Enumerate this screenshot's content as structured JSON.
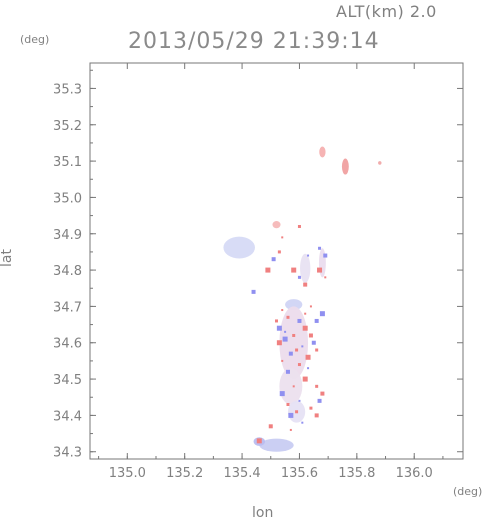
{
  "header": {
    "altitude": "ALT(km) 2.0",
    "timestamp": "2013/05/29 21:39:14"
  },
  "chart_data": {
    "type": "heatmap",
    "title": "2013/05/29 21:39:14",
    "subtitle": "ALT(km) 2.0",
    "xlabel": "lon",
    "ylabel": "lat",
    "x_unit": "(deg)",
    "y_unit": "(deg)",
    "xlim": [
      134.87,
      136.17
    ],
    "ylim": [
      34.28,
      35.37
    ],
    "x_ticks": [
      135.0,
      135.2,
      135.4,
      135.6,
      135.8,
      136.0
    ],
    "x_tick_labels": [
      "135.0",
      "135.2",
      "135.4",
      "135.6",
      "135.8",
      "136.0"
    ],
    "y_ticks": [
      34.3,
      34.4,
      34.5,
      34.6,
      34.7,
      34.8,
      34.9,
      35.0,
      35.1,
      35.2,
      35.3
    ],
    "y_tick_labels": [
      "34.3",
      "34.4",
      "34.5",
      "34.6",
      "34.7",
      "34.8",
      "34.9",
      "35.0",
      "35.1",
      "35.2",
      "35.3"
    ],
    "grid": false,
    "colors": {
      "positive": "#f08080",
      "negative": "#9090f0",
      "weak_negative": "#d0d4f4",
      "axis": "#777777"
    },
    "regions": [
      {
        "lon": 135.39,
        "lat": 34.862,
        "rlon": 0.055,
        "rlat": 0.03,
        "color": "#d6daf5"
      },
      {
        "lon": 135.52,
        "lat": 34.318,
        "rlon": 0.06,
        "rlat": 0.018,
        "color": "#c8ccf2"
      },
      {
        "lon": 135.46,
        "lat": 34.328,
        "rlon": 0.02,
        "rlat": 0.012,
        "color": "#b9bdf0"
      },
      {
        "lon": 135.52,
        "lat": 34.925,
        "rlon": 0.014,
        "rlat": 0.01,
        "color": "#f5b8b8"
      },
      {
        "lon": 135.68,
        "lat": 35.125,
        "rlon": 0.011,
        "rlat": 0.015,
        "color": "#f5b0b0"
      },
      {
        "lon": 135.76,
        "lat": 35.085,
        "rlon": 0.012,
        "rlat": 0.022,
        "color": "#f0a0a0"
      },
      {
        "lon": 135.88,
        "lat": 35.095,
        "rlon": 0.006,
        "rlat": 0.005,
        "color": "#f0a8a8"
      },
      {
        "lon": 135.58,
        "lat": 34.705,
        "rlon": 0.03,
        "rlat": 0.015,
        "color": "#d0d4f4"
      },
      {
        "lon": 135.62,
        "lat": 34.805,
        "rlon": 0.018,
        "rlat": 0.04,
        "color": "#e8e2f2"
      },
      {
        "lon": 135.58,
        "lat": 34.6,
        "rlon": 0.05,
        "rlat": 0.1,
        "color": "#ecdcec"
      },
      {
        "lon": 135.57,
        "lat": 34.48,
        "rlon": 0.04,
        "rlat": 0.05,
        "color": "#ece0ee"
      },
      {
        "lon": 135.59,
        "lat": 34.41,
        "rlon": 0.03,
        "rlat": 0.03,
        "color": "#e6e2f4"
      },
      {
        "lon": 135.68,
        "lat": 34.82,
        "rlon": 0.012,
        "rlat": 0.04,
        "color": "#eadcee"
      }
    ],
    "pixels": [
      {
        "lon": 135.54,
        "lat": 34.69,
        "v": "p"
      },
      {
        "lon": 135.56,
        "lat": 34.67,
        "v": "p"
      },
      {
        "lon": 135.6,
        "lat": 34.66,
        "v": "n"
      },
      {
        "lon": 135.62,
        "lat": 34.64,
        "v": "p"
      },
      {
        "lon": 135.55,
        "lat": 34.63,
        "v": "n"
      },
      {
        "lon": 135.58,
        "lat": 34.62,
        "v": "p"
      },
      {
        "lon": 135.64,
        "lat": 34.62,
        "v": "p"
      },
      {
        "lon": 135.53,
        "lat": 34.6,
        "v": "p"
      },
      {
        "lon": 135.61,
        "lat": 34.59,
        "v": "n"
      },
      {
        "lon": 135.66,
        "lat": 34.58,
        "v": "p"
      },
      {
        "lon": 135.57,
        "lat": 34.57,
        "v": "n"
      },
      {
        "lon": 135.63,
        "lat": 34.56,
        "v": "p"
      },
      {
        "lon": 135.54,
        "lat": 34.55,
        "v": "p"
      },
      {
        "lon": 135.6,
        "lat": 34.54,
        "v": "p"
      },
      {
        "lon": 135.66,
        "lat": 34.66,
        "v": "n"
      },
      {
        "lon": 135.68,
        "lat": 34.68,
        "v": "n"
      },
      {
        "lon": 135.64,
        "lat": 34.7,
        "v": "p"
      },
      {
        "lon": 135.52,
        "lat": 34.66,
        "v": "p"
      },
      {
        "lon": 135.56,
        "lat": 34.52,
        "v": "n"
      },
      {
        "lon": 135.62,
        "lat": 34.5,
        "v": "p"
      },
      {
        "lon": 135.58,
        "lat": 34.48,
        "v": "p"
      },
      {
        "lon": 135.66,
        "lat": 34.48,
        "v": "p"
      },
      {
        "lon": 135.68,
        "lat": 34.46,
        "v": "p"
      },
      {
        "lon": 135.54,
        "lat": 34.46,
        "v": "n"
      },
      {
        "lon": 135.6,
        "lat": 34.44,
        "v": "n"
      },
      {
        "lon": 135.64,
        "lat": 34.42,
        "v": "p"
      },
      {
        "lon": 135.66,
        "lat": 34.4,
        "v": "p"
      },
      {
        "lon": 135.57,
        "lat": 34.4,
        "v": "n"
      },
      {
        "lon": 135.61,
        "lat": 34.38,
        "v": "n"
      },
      {
        "lon": 135.59,
        "lat": 34.41,
        "v": "p"
      },
      {
        "lon": 135.5,
        "lat": 34.37,
        "v": "p"
      },
      {
        "lon": 135.46,
        "lat": 34.33,
        "v": "p"
      },
      {
        "lon": 135.57,
        "lat": 34.36,
        "v": "p"
      },
      {
        "lon": 135.6,
        "lat": 34.78,
        "v": "n"
      },
      {
        "lon": 135.62,
        "lat": 34.76,
        "v": "p"
      },
      {
        "lon": 135.58,
        "lat": 34.8,
        "v": "p"
      },
      {
        "lon": 135.63,
        "lat": 34.84,
        "v": "n"
      },
      {
        "lon": 135.67,
        "lat": 34.86,
        "v": "n"
      },
      {
        "lon": 135.69,
        "lat": 34.84,
        "v": "n"
      },
      {
        "lon": 135.67,
        "lat": 34.8,
        "v": "p"
      },
      {
        "lon": 135.69,
        "lat": 34.78,
        "v": "p"
      },
      {
        "lon": 135.53,
        "lat": 34.85,
        "v": "p"
      },
      {
        "lon": 135.51,
        "lat": 34.83,
        "v": "n"
      },
      {
        "lon": 135.49,
        "lat": 34.8,
        "v": "p"
      },
      {
        "lon": 135.54,
        "lat": 34.89,
        "v": "p"
      },
      {
        "lon": 135.6,
        "lat": 34.92,
        "v": "p"
      },
      {
        "lon": 135.44,
        "lat": 34.74,
        "v": "n"
      },
      {
        "lon": 135.55,
        "lat": 34.61,
        "v": "n"
      },
      {
        "lon": 135.62,
        "lat": 34.68,
        "v": "p"
      },
      {
        "lon": 135.59,
        "lat": 34.58,
        "v": "p"
      },
      {
        "lon": 135.65,
        "lat": 34.6,
        "v": "n"
      },
      {
        "lon": 135.53,
        "lat": 34.64,
        "v": "n"
      },
      {
        "lon": 135.63,
        "lat": 34.53,
        "v": "n"
      },
      {
        "lon": 135.56,
        "lat": 34.43,
        "v": "p"
      },
      {
        "lon": 135.67,
        "lat": 34.44,
        "v": "n"
      }
    ]
  }
}
